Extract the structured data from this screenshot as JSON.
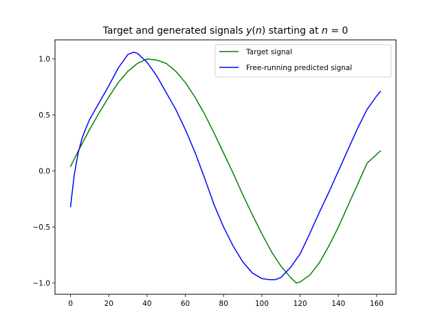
{
  "chart_data": {
    "type": "line",
    "title": {
      "prefix": "Target and generated signals ",
      "math_func": "y",
      "math_arg": "n",
      "middle": " starting at ",
      "math_var": "n",
      "math_rest": " = 0"
    },
    "xlabel": "",
    "ylabel": "",
    "xlim": [
      -8.1,
      170.1
    ],
    "ylim": [
      -1.1,
      1.17
    ],
    "xticks": [
      0,
      20,
      40,
      60,
      80,
      100,
      120,
      140,
      160
    ],
    "xtick_labels": [
      "0",
      "20",
      "40",
      "60",
      "80",
      "100",
      "120",
      "140",
      "160"
    ],
    "yticks": [
      -1.0,
      -0.5,
      0.0,
      0.5,
      1.0
    ],
    "ytick_labels": [
      "−1.0",
      "−0.5",
      "0.0",
      "0.5",
      "1.0"
    ],
    "grid": false,
    "legend_position": "top-right",
    "series": [
      {
        "name": "Target signal",
        "color": "#008000",
        "x": [
          0,
          5,
          10,
          15,
          20,
          25,
          30,
          35,
          40,
          45,
          50,
          55,
          60,
          65,
          70,
          75,
          80,
          85,
          90,
          95,
          100,
          105,
          110,
          115,
          118,
          120,
          125,
          130,
          135,
          140,
          145,
          150,
          155,
          162
        ],
        "y": [
          0.04,
          0.21,
          0.37,
          0.52,
          0.66,
          0.79,
          0.89,
          0.96,
          1.0,
          0.99,
          0.96,
          0.89,
          0.79,
          0.66,
          0.51,
          0.34,
          0.16,
          -0.02,
          -0.21,
          -0.39,
          -0.56,
          -0.72,
          -0.85,
          -0.95,
          -1.0,
          -0.99,
          -0.93,
          -0.82,
          -0.67,
          -0.5,
          -0.31,
          -0.12,
          0.07,
          0.18
        ]
      },
      {
        "name": "Free-running predicted signal",
        "color": "#0000ff",
        "x": [
          0,
          2,
          4,
          6,
          8,
          10,
          15,
          20,
          25,
          30,
          33,
          35,
          40,
          45,
          50,
          55,
          60,
          65,
          70,
          75,
          80,
          85,
          90,
          95,
          100,
          104,
          107,
          110,
          115,
          120,
          125,
          130,
          135,
          140,
          145,
          150,
          155,
          160,
          162
        ],
        "y": [
          -0.32,
          -0.03,
          0.16,
          0.29,
          0.38,
          0.46,
          0.61,
          0.76,
          0.92,
          1.04,
          1.06,
          1.05,
          0.97,
          0.85,
          0.7,
          0.55,
          0.37,
          0.17,
          -0.06,
          -0.3,
          -0.5,
          -0.67,
          -0.81,
          -0.91,
          -0.96,
          -0.97,
          -0.97,
          -0.95,
          -0.86,
          -0.74,
          -0.56,
          -0.37,
          -0.19,
          0.0,
          0.19,
          0.38,
          0.55,
          0.67,
          0.71
        ]
      }
    ]
  }
}
